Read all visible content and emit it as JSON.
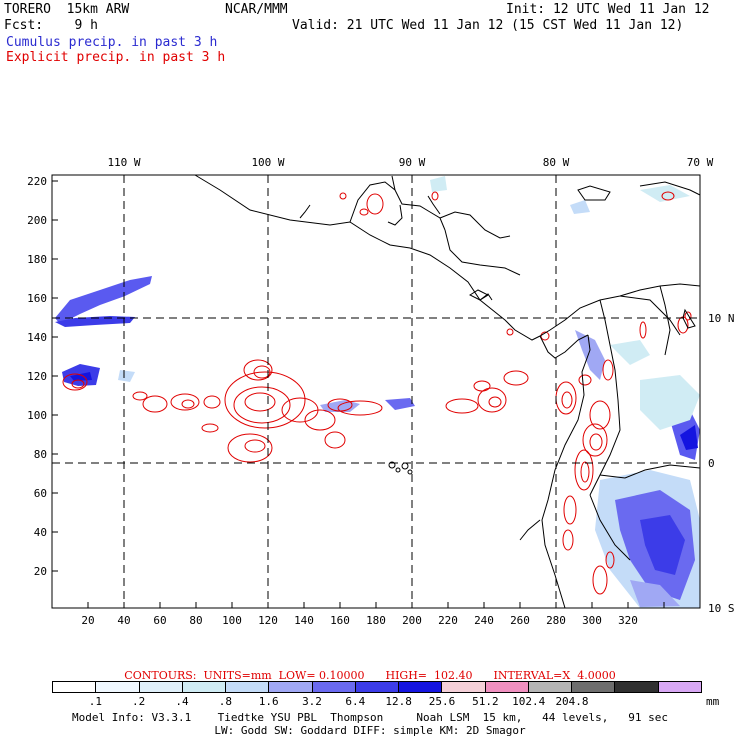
{
  "header": {
    "model": "TORERO  15km ARW",
    "org": "NCAR/MMM",
    "init": "Init: 12 UTC Wed 11 Jan 12",
    "fcst": "Fcst:    9 h",
    "valid": "Valid: 21 UTC Wed 11 Jan 12 (15 CST Wed 11 Jan 12)",
    "field1": "Cumulus precip. in past 3 h",
    "field2": "Explicit precip. in past 3 h"
  },
  "colors": {
    "cumulus_text": "#2b2bd0",
    "explicit_text": "#e00000",
    "contour": "#e00000",
    "grid": "#000000"
  },
  "axes": {
    "top_lon_labels": [
      "110 W",
      "100 W",
      "90 W",
      "80 W",
      "70 W"
    ],
    "right_lat_labels": [
      "10 N",
      "0",
      "10 S"
    ],
    "x_ticks": [
      "20",
      "40",
      "60",
      "80",
      "100",
      "120",
      "140",
      "160",
      "180",
      "200",
      "220",
      "240",
      "260",
      "280",
      "300",
      "320"
    ],
    "y_ticks": [
      "220",
      "200",
      "180",
      "160",
      "140",
      "120",
      "100",
      "80",
      "60",
      "40",
      "20"
    ]
  },
  "contours_info": {
    "text": "CONTOURS:  UNITS=mm  LOW= 0.10000      HIGH=  102.40      INTERVAL=X  4.0000"
  },
  "legend": {
    "colors": [
      "#ffffff",
      "#f0f8ff",
      "#e0f0fa",
      "#d0ecf4",
      "#c4dcf8",
      "#a0a8f4",
      "#6a6af0",
      "#3c3ce8",
      "#1414e0",
      "#f4d0d8",
      "#f090c0",
      "#b4b4b4",
      "#6e6e6e",
      "#303030",
      "#d8a8f4"
    ],
    "labels": [
      ".1",
      ".2",
      ".4",
      ".8",
      "1.6",
      "3.2",
      "6.4",
      "12.8",
      "25.6",
      "51.2",
      "102.4",
      "204.8"
    ],
    "units": "mm"
  },
  "model_info": {
    "line1": "Model Info: V3.3.1    Tiedtke YSU PBL  Thompson     Noah LSM  15 km,   44 levels,   91 sec",
    "line2": "LW: Godd SW: Goddard DIFF: simple KM: 2D Smagor"
  }
}
